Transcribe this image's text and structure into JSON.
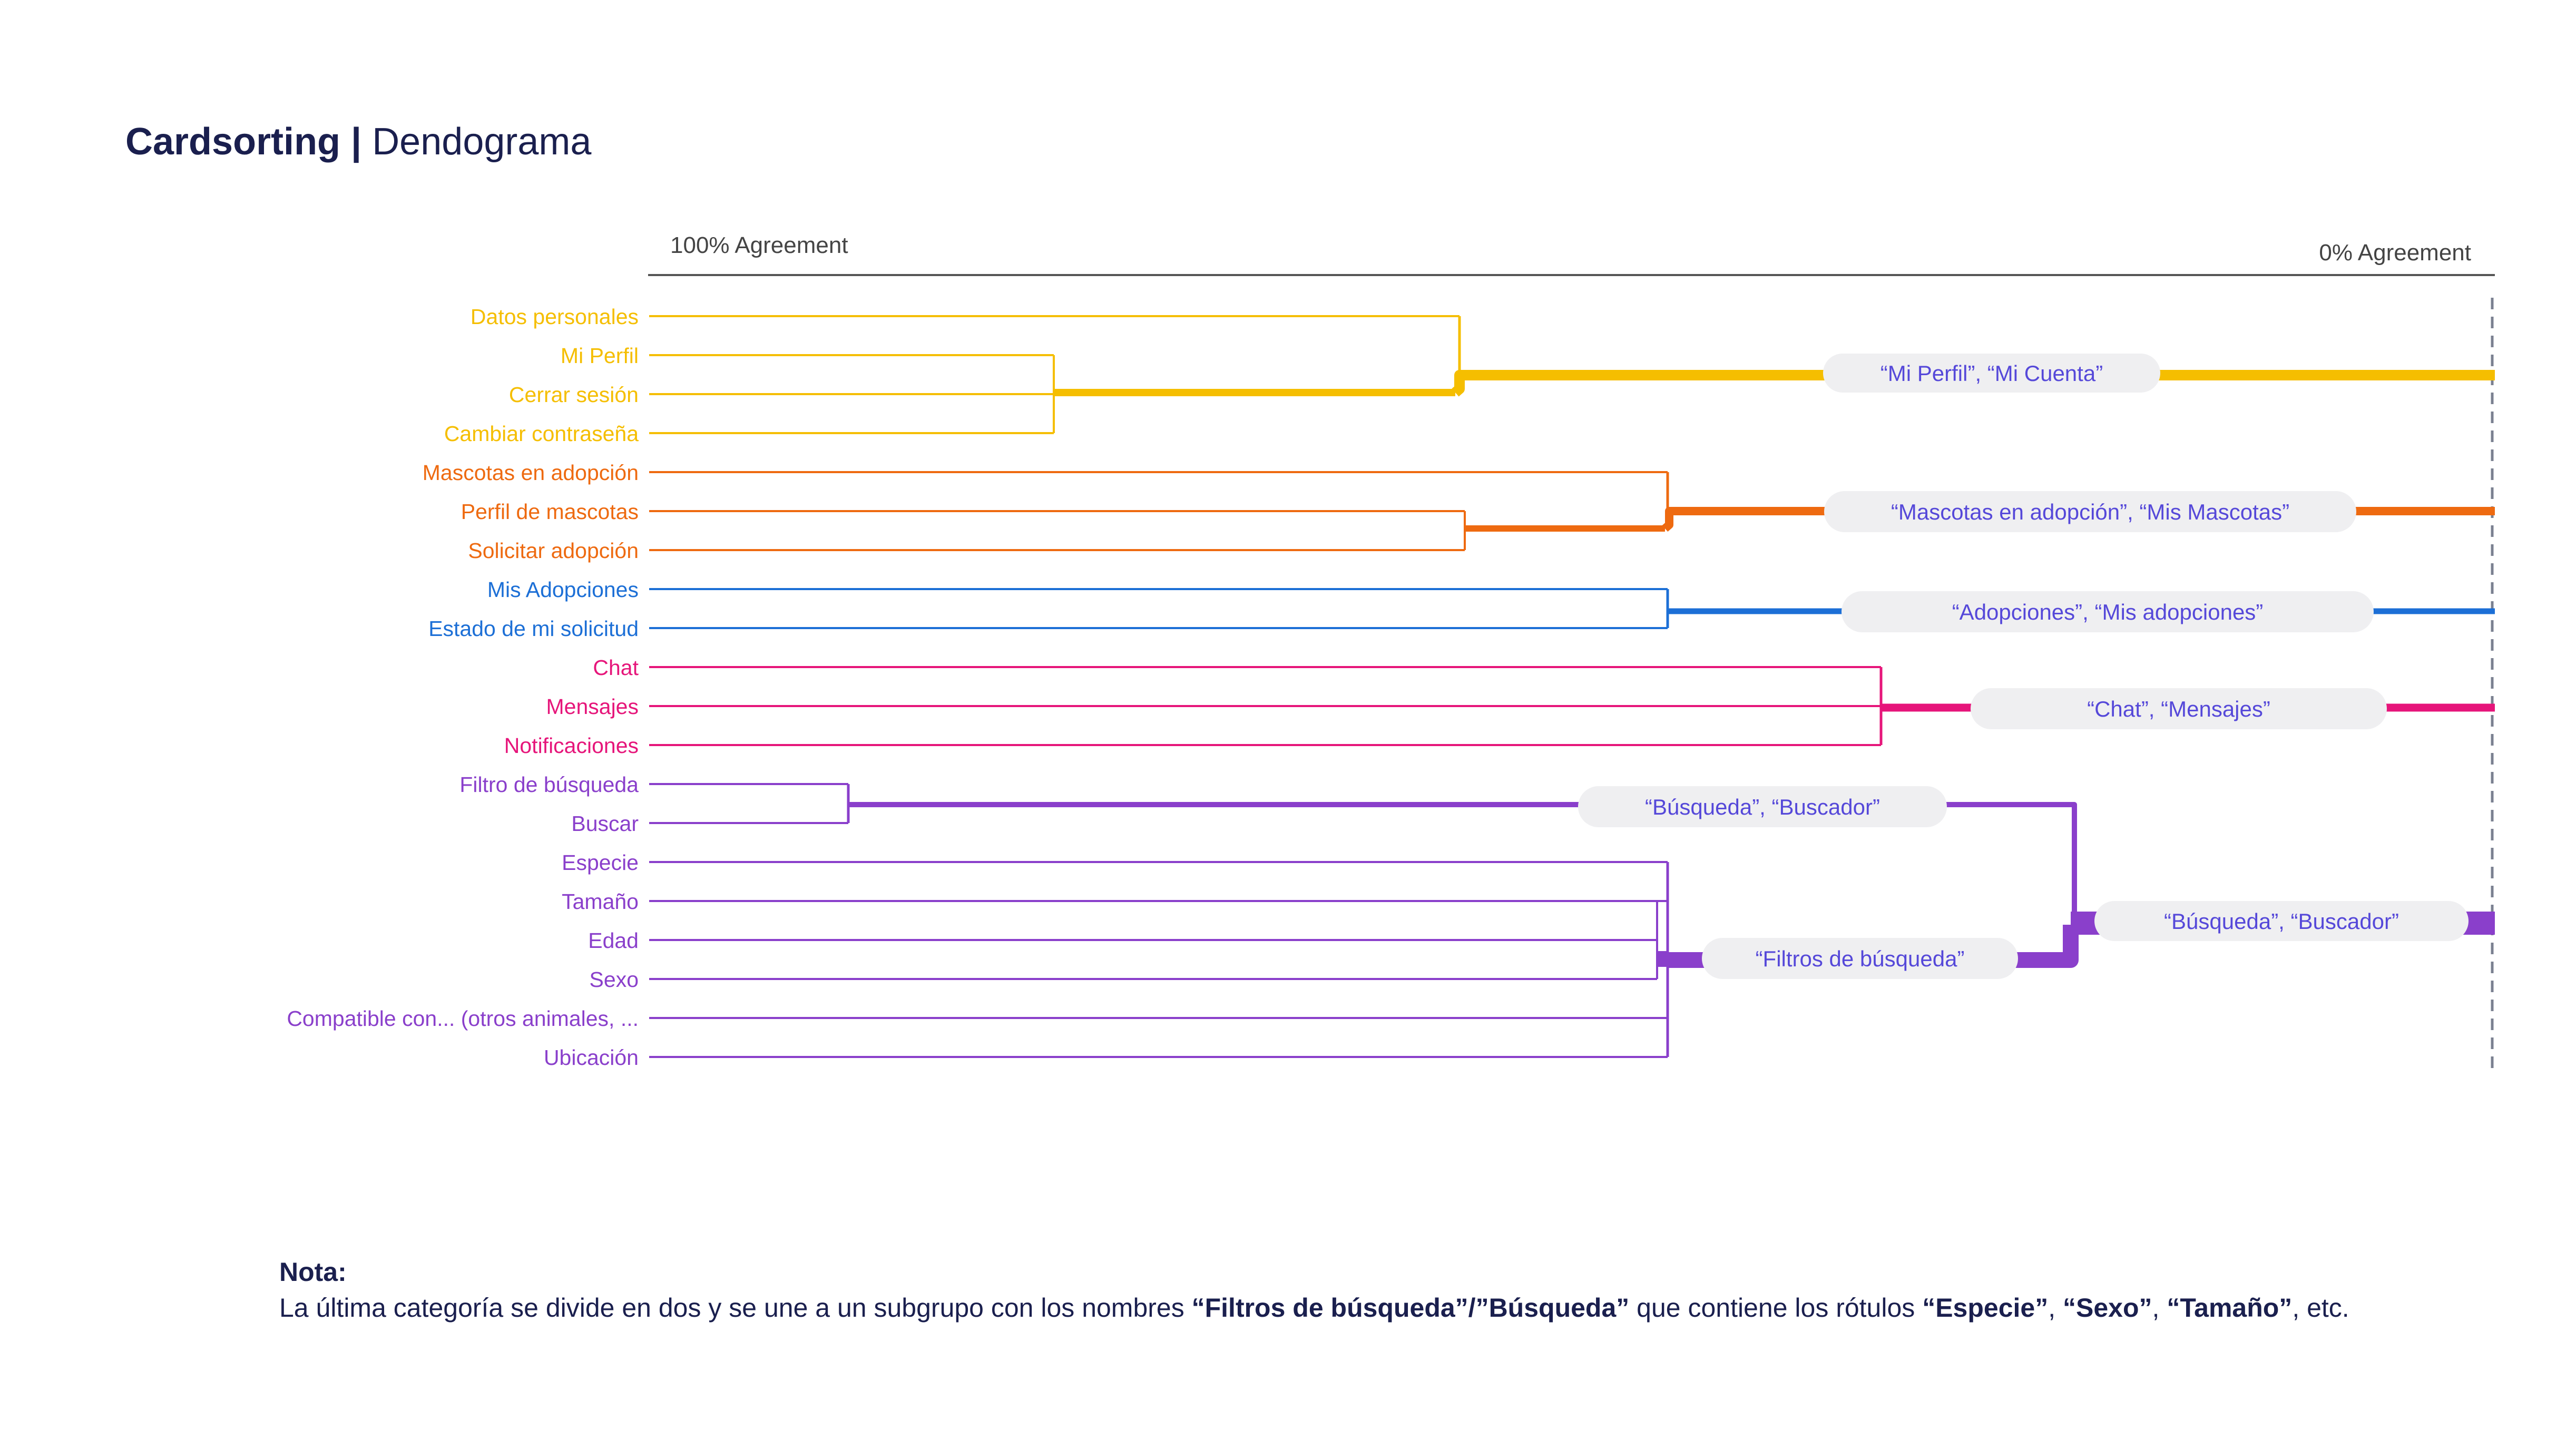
{
  "title": {
    "bold": "Cardsorting |",
    "light": "Dendograma"
  },
  "axis": {
    "left_label": "100% Agreement",
    "right_label": "0% Agreement"
  },
  "colors": {
    "perfil": "#F5BE00",
    "mascotas": "#EE6A10",
    "adopciones": "#1C6FD6",
    "chat": "#E6157A",
    "busqueda": "#8A3FCB",
    "pill_bg": "#EFEFF1",
    "pill_text": "#5548D9",
    "axis": "#555555",
    "dashed": "#7A8090"
  },
  "cards": [
    {
      "label": "Datos personales",
      "group": "perfil"
    },
    {
      "label": "Mi Perfil",
      "group": "perfil"
    },
    {
      "label": "Cerrar sesión",
      "group": "perfil"
    },
    {
      "label": "Cambiar contraseña",
      "group": "perfil"
    },
    {
      "label": "Mascotas en adopción",
      "group": "mascotas"
    },
    {
      "label": "Perfil de mascotas",
      "group": "mascotas"
    },
    {
      "label": "Solicitar adopción",
      "group": "mascotas"
    },
    {
      "label": "Mis Adopciones",
      "group": "adopciones"
    },
    {
      "label": "Estado de mi solicitud",
      "group": "adopciones"
    },
    {
      "label": "Chat",
      "group": "chat"
    },
    {
      "label": "Mensajes",
      "group": "chat"
    },
    {
      "label": "Notificaciones",
      "group": "chat"
    },
    {
      "label": "Filtro de búsqueda",
      "group": "busqueda"
    },
    {
      "label": "Buscar",
      "group": "busqueda"
    },
    {
      "label": "Especie",
      "group": "busqueda"
    },
    {
      "label": "Tamaño",
      "group": "busqueda"
    },
    {
      "label": "Edad",
      "group": "busqueda"
    },
    {
      "label": "Sexo",
      "group": "busqueda"
    },
    {
      "label": "Compatible con... (otros animales, ...",
      "group": "busqueda"
    },
    {
      "label": "Ubicación",
      "group": "busqueda"
    }
  ],
  "cluster_labels": [
    {
      "text": "“Mi Perfil”, “Mi Cuenta”",
      "group": "perfil"
    },
    {
      "text": "“Mascotas en adopción”, “Mis Mascotas”",
      "group": "mascotas"
    },
    {
      "text": "“Adopciones”, “Mis adopciones”",
      "group": "adopciones"
    },
    {
      "text": "“Chat”, “Mensajes”",
      "group": "chat"
    },
    {
      "text": "“Búsqueda”, “Buscador”",
      "group": "busqueda"
    },
    {
      "text": "“Filtros de búsqueda”",
      "group": "busqueda"
    },
    {
      "text": "“Búsqueda”, “Buscador”",
      "group": "busqueda"
    }
  ],
  "note": {
    "heading": "Nota:",
    "text_1": "La última categoría se divide en dos y se une a un subgrupo con los nombres ",
    "bold_1": "“Filtros de búsqueda”/”Búsqueda”",
    "text_2": "  que contiene los rótulos ",
    "bold_2": "“Especie”",
    "sep_1": ", ",
    "bold_3": "“Sexo”",
    "sep_2": ", ",
    "bold_4": "“Tamaño”",
    "text_3": ", etc."
  }
}
